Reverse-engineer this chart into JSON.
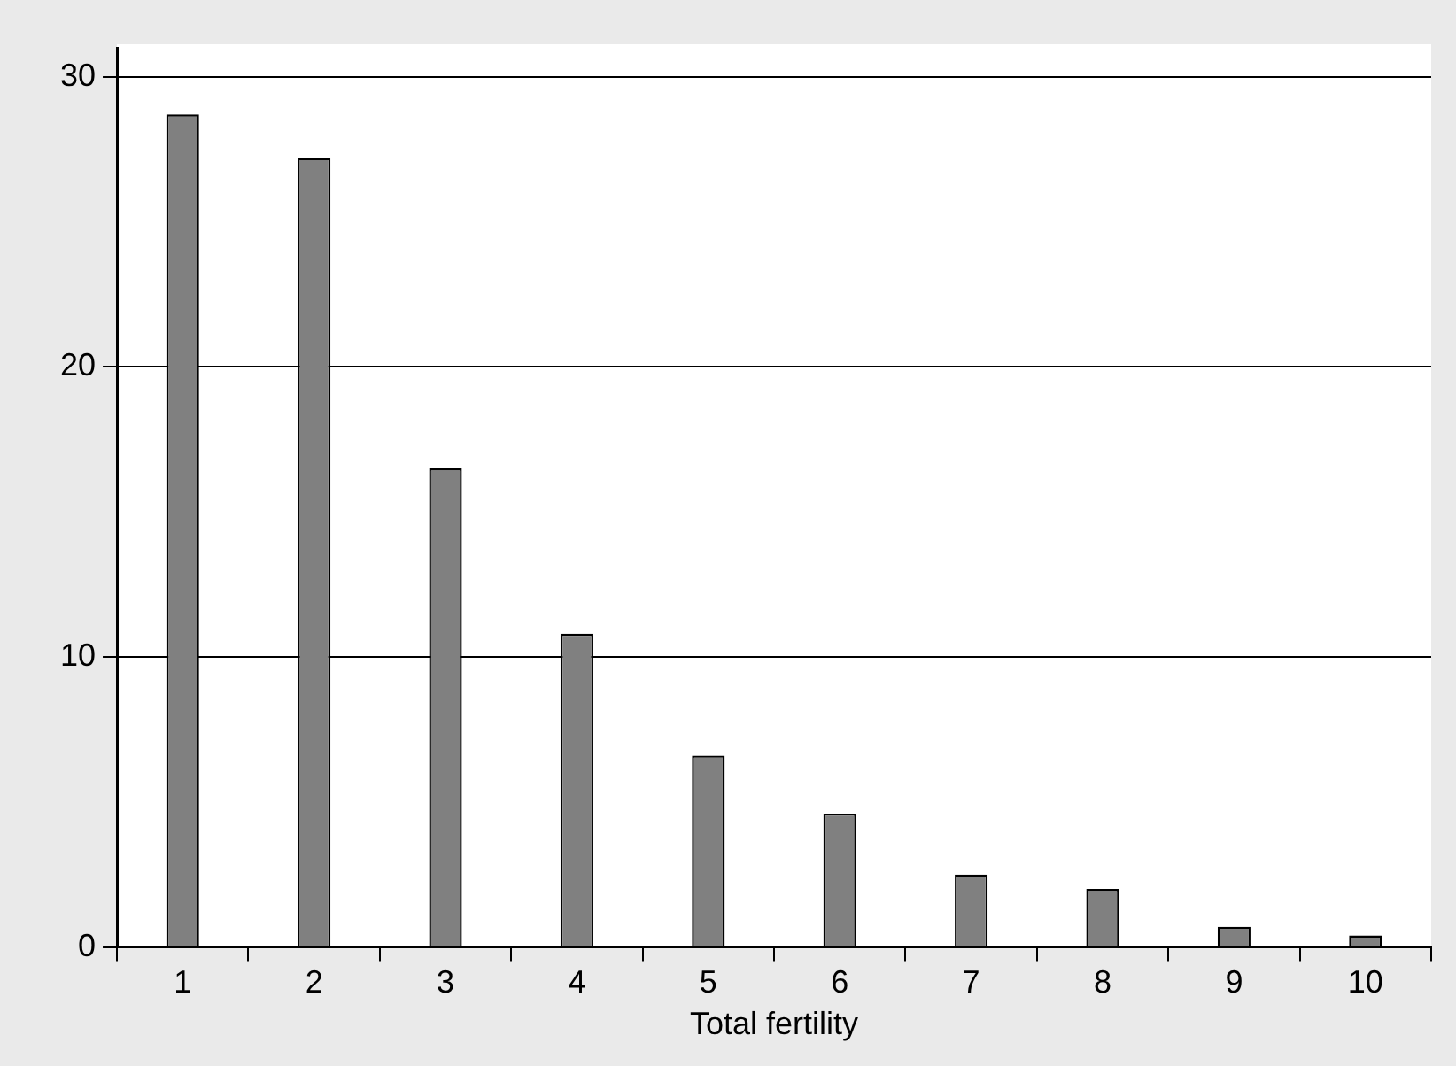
{
  "chart_data": {
    "type": "bar",
    "xlabel": "Total fertility",
    "categories": [
      "1",
      "2",
      "3",
      "4",
      "5",
      "6",
      "7",
      "8",
      "9",
      "10"
    ],
    "values": [
      28.7,
      27.2,
      16.5,
      10.8,
      6.6,
      4.6,
      2.5,
      2.0,
      0.7,
      0.4
    ],
    "color": "#808080",
    "ylim": [
      0,
      31
    ],
    "yticks": [
      0,
      10,
      20,
      30
    ],
    "grid": "y"
  }
}
